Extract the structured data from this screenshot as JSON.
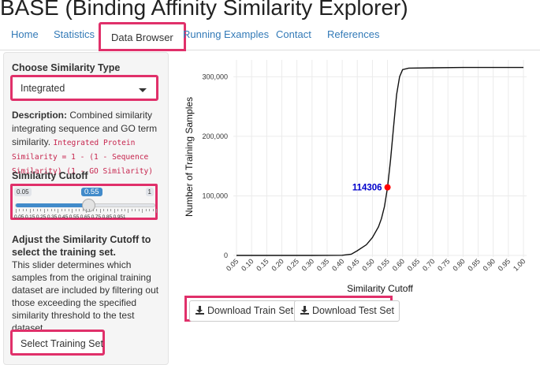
{
  "app": {
    "title": "BASE (Binding Affinity Similarity Explorer)"
  },
  "nav": {
    "tabs": [
      {
        "label": "Home"
      },
      {
        "label": "Statistics"
      },
      {
        "label": "Data Browser"
      },
      {
        "label": "Running Examples"
      },
      {
        "label": "Contact"
      },
      {
        "label": "References"
      }
    ],
    "active": "Data Browser"
  },
  "sidebar": {
    "similarity_type_label": "Choose Similarity Type",
    "similarity_type_value": "Integrated",
    "desc_label": "Description:",
    "desc_text": " Combined similarity integrating sequence and GO term similarity.",
    "desc_formula": "Integrated Protein Similarity = 1 - (1 - Sequence Similarity) (1 - GO Similarity)",
    "cutoff_label": "Similarity Cutoff",
    "slider": {
      "min_label": "0.05",
      "max_label": "1",
      "value": 0.55,
      "value_label": "0.55",
      "grid_labels": "0.05 0.15 0.25 0.35 0.45 0.55 0.65 0.75 0.85 0.951"
    },
    "adjust_heading": "Adjust the Similarity Cutoff to select the training set.",
    "adjust_text": "This slider determines which samples from the original training dataset are included by filtering out those exceeding the specified similarity threshold to the test dataset.",
    "select_button": "Select Training Set"
  },
  "downloads": {
    "train": "Download Train Set",
    "test": "Download Test Set",
    "icon": "download-icon"
  },
  "colors": {
    "highlight": "#e0306a",
    "link": "#337ab7",
    "marker": "#ff0000",
    "annotation": "#0000cc"
  },
  "chart_data": {
    "type": "line",
    "xlabel": "Similarity Cutoff",
    "ylabel": "Number of Training Samples",
    "xlim": [
      0.05,
      1.0
    ],
    "ylim": [
      0,
      315000
    ],
    "x_ticks": [
      "0.05",
      "0.10",
      "0.15",
      "0.20",
      "0.25",
      "0.30",
      "0.35",
      "0.40",
      "0.45",
      "0.50",
      "0.55",
      "0.60",
      "0.65",
      "0.70",
      "0.75",
      "0.80",
      "0.85",
      "0.90",
      "0.95",
      "1.00"
    ],
    "y_ticks": [
      {
        "v": 0,
        "label": "0"
      },
      {
        "v": 100000,
        "label": "100,000"
      },
      {
        "v": 200000,
        "label": "200,000"
      },
      {
        "v": 300000,
        "label": "300,000"
      }
    ],
    "grid": true,
    "x": [
      0.05,
      0.3,
      0.4,
      0.43,
      0.45,
      0.48,
      0.5,
      0.52,
      0.53,
      0.54,
      0.55,
      0.56,
      0.57,
      0.58,
      0.59,
      0.6,
      0.62,
      0.7,
      0.8,
      1.0
    ],
    "y": [
      0,
      0,
      300,
      2000,
      8000,
      18000,
      30000,
      48000,
      62000,
      82000,
      114306,
      160000,
      215000,
      270000,
      300000,
      312000,
      314500,
      315000,
      315500,
      315500
    ],
    "highlight_point": {
      "x": 0.55,
      "y": 114306,
      "label": "114306"
    }
  }
}
